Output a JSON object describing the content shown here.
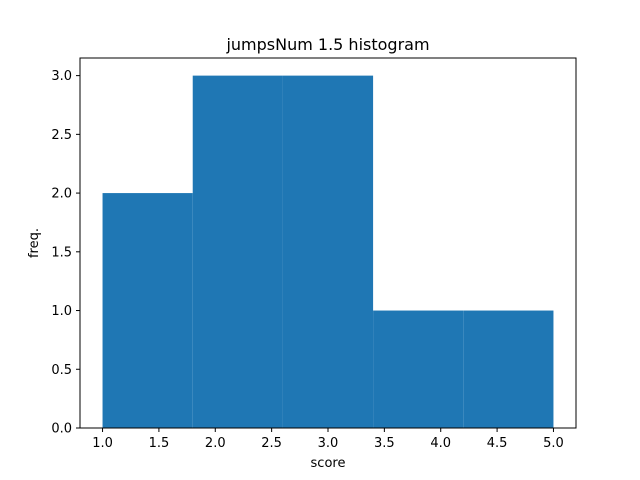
{
  "chart_data": {
    "type": "bar",
    "title": "jumpsNum 1.5 histogram",
    "xlabel": "score",
    "ylabel": "freq.",
    "bins": [
      {
        "start": 1.0,
        "end": 1.8,
        "count": 2
      },
      {
        "start": 1.8,
        "end": 2.6,
        "count": 3
      },
      {
        "start": 2.6,
        "end": 3.4,
        "count": 3
      },
      {
        "start": 3.4,
        "end": 4.2,
        "count": 1
      },
      {
        "start": 4.2,
        "end": 5.0,
        "count": 1
      }
    ],
    "xlim": [
      0.8,
      5.2
    ],
    "ylim": [
      0.0,
      3.15
    ],
    "xticks": [
      "1.0",
      "1.5",
      "2.0",
      "2.5",
      "3.0",
      "3.5",
      "4.0",
      "4.5",
      "5.0"
    ],
    "yticks": [
      "0.0",
      "0.5",
      "1.0",
      "1.5",
      "2.0",
      "2.5",
      "3.0"
    ],
    "bar_color": "#1f77b4",
    "grid": false,
    "legend": "none"
  }
}
